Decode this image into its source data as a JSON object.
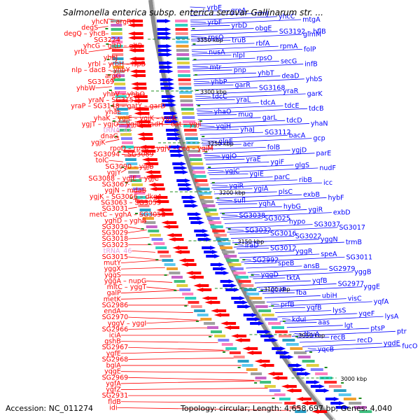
{
  "title": "Salmonella enterica subsp. enterica serovar Gallinarum str. ...",
  "footer": {
    "accession": "Accession: NC_011274",
    "summary": "Topology: circular; Length: 4,658,697 bp; Genes: 4,040"
  },
  "colors": {
    "reverse_strand": "#ff0000",
    "forward_strand": "#0000ff",
    "backbone": "#8a8a8a",
    "ticks": "#1e8c1e",
    "tick_label": "#000000"
  },
  "ticks": [
    "3350 kbp",
    "3300 kbp",
    "3250 kbp",
    "3200 kbp",
    "3150 kbp",
    "3100 kbp",
    "3050 kbp",
    "3000 kbp"
  ],
  "left_labels": [
    "yhcN – argR",
    "degS",
    "degQ – yhcB",
    "SG3224",
    "yhcG – gltD – gltB",
    "yrbL",
    "yhbJ",
    "yrbl – yrbH – ispB",
    "nlp – dacB – yhbY",
    "argG",
    "SG3169",
    "yhbW",
    "yhbV – yhbQ",
    "yraN – SG3151",
    "yraP – SG3148 – gatY – garD",
    "yhaL",
    "yhaK – ygjE – ygjK – ygjA",
    "ygjT – ygjO – ygjP – fadH – oat – ygjl",
    "tRNA_47",
    "dnaG",
    "ygjK",
    "rpoD – rpsU – ygjV – cca – ygjM",
    "SG3094 – SG3089",
    "tolC",
    "SG3090 – ygjB",
    "ygjY",
    "SG3088 – ygjE – ygjC",
    "SG3067",
    "ygjN – mdaB",
    "ygjK – SG3066 – dkgA",
    "SG3063 – SG3053",
    "SG3031",
    "metC – yghA – SG3052",
    "yghD – yghB",
    "SG3030",
    "SG3029",
    "SG3018",
    "SG3023",
    "tRNA_46",
    "SG3015",
    "mutY",
    "yggX",
    "yggS",
    "yggA – nupG",
    "mltC – yggT",
    "galP",
    "metK",
    "SG2986",
    "endA",
    "SG2970",
    "yggV – yggI",
    "SG2966",
    "iciA",
    "gshB",
    "SG2967",
    "ygfE",
    "SG2968",
    "bglA",
    "yqgE",
    "SG2969",
    "ygfA",
    "ygfZ",
    "SG2931",
    "fldB",
    "idi"
  ],
  "right_labels": [
    "yrbE",
    "greA",
    "rrmJ",
    "yhcC",
    "mtgA",
    "yrbF",
    "yrbD",
    "obgE",
    "SG3192 – hflB",
    "glmM",
    "rpsO",
    "truB",
    "rbfA",
    "rpmA",
    "folP",
    "nusA",
    "nlpI",
    "rpsO",
    "secG",
    "infB",
    "mtr",
    "pnp",
    "yhbT",
    "deaD",
    "yhbS",
    "yhbP",
    "garR",
    "SG3168",
    "yraR",
    "garK",
    "tdcC",
    "yraL",
    "tdcA",
    "tdcE",
    "tdcB",
    "yhaO",
    "mug",
    "garL",
    "tdcD",
    "yhaN",
    "yqjH",
    "yhaJ",
    "SG3112",
    "bacA",
    "gcp",
    "glnE",
    "aer",
    "folB",
    "ygjD",
    "parE",
    "ygjO",
    "yraE",
    "ygiF",
    "glgS",
    "nudF",
    "ygjC",
    "ygiE",
    "parC",
    "ribB",
    "icc",
    "ygiR",
    "ygiA",
    "plsC",
    "exbB",
    "hybF",
    "sufl",
    "yqhA",
    "hybG",
    "ygiR",
    "exbD",
    "SG3038",
    "SG3025",
    "hypo",
    "SG3037",
    "SG3017",
    "SG3032",
    "SG3016",
    "SG3022",
    "yggN",
    "trmB",
    "iraD",
    "SG3012",
    "yggR",
    "speA",
    "SG3011",
    "SG2992",
    "speB",
    "ansB",
    "SG2979",
    "yggB",
    "yqgD",
    "tktA",
    "yqfB",
    "SG2977",
    "yggE",
    "gcvP",
    "fba",
    "ubiH",
    "visC",
    "yqfA",
    "prfB",
    "yqfB",
    "lysS",
    "yqeF",
    "lysA",
    "kduI",
    "aas",
    "lgt",
    "ptsP",
    "ptr",
    "thyA",
    "recB",
    "recD",
    "ygdE",
    "fucO",
    "yqcB"
  ]
}
